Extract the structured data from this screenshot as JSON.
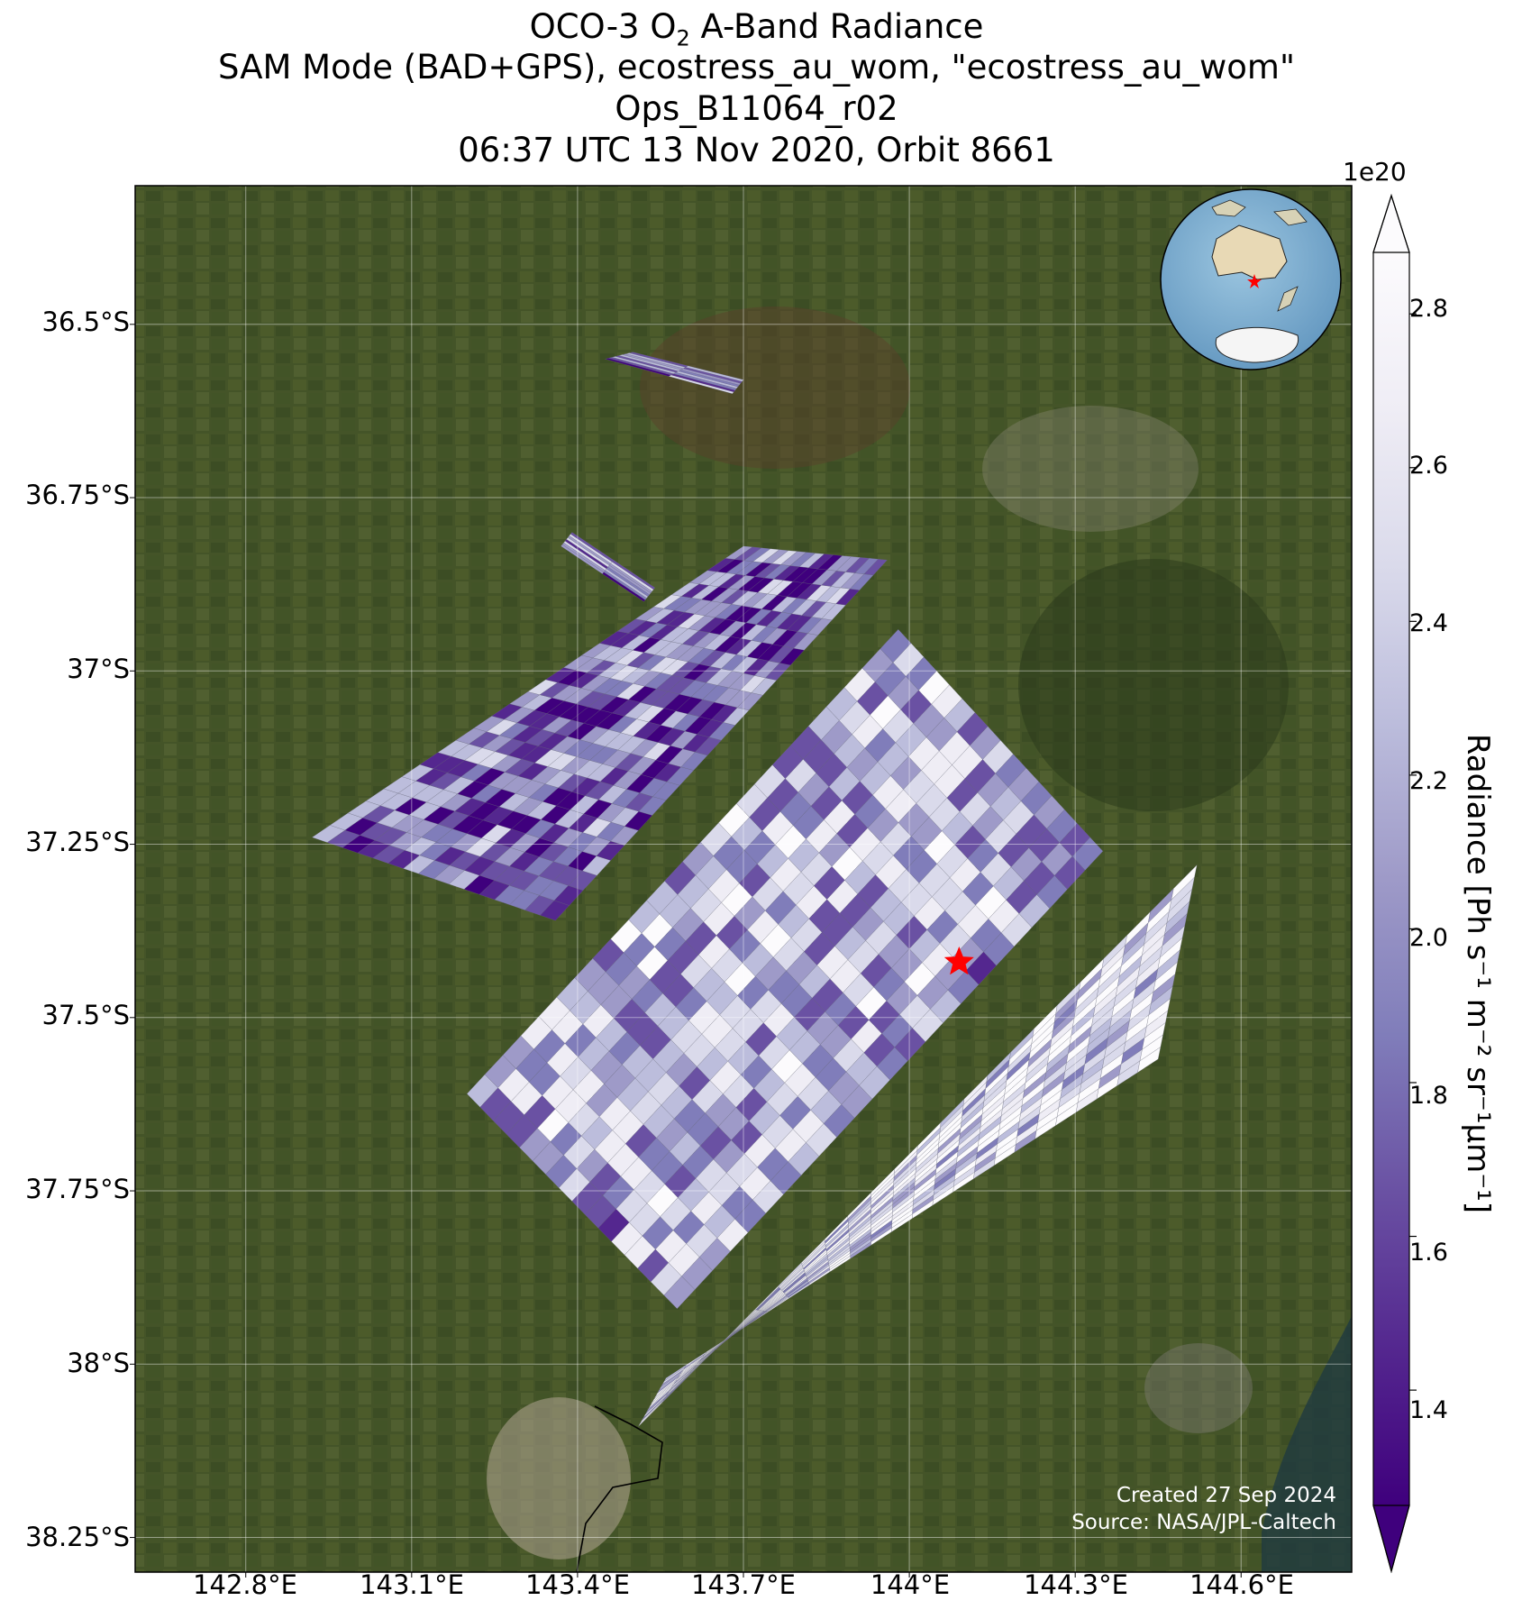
{
  "title": {
    "line1_prefix": "OCO-3 O",
    "line1_sub": "2",
    "line1_suffix": " A-Band Radiance",
    "line2": "SAM Mode (BAD+GPS), ecostress_au_wom, \"ecostress_au_wom\"",
    "line3": "Ops_B11064_r02",
    "line4": "06:37 UTC 13 Nov 2020, Orbit 8661"
  },
  "colorbar": {
    "label": "Radiance [Ph s⁻¹ m⁻² sr⁻¹μm⁻¹]",
    "exponent": "1e20",
    "ticks": [
      "2.8",
      "2.6",
      "2.4",
      "2.2",
      "2.0",
      "1.8",
      "1.6",
      "1.4"
    ],
    "colors": [
      "#3f007d",
      "#54278f",
      "#6a51a3",
      "#807dba",
      "#9e9ac8",
      "#bcbddc",
      "#dadaeb",
      "#efedf5",
      "#fcfbfd"
    ]
  },
  "credits": {
    "created": "Created 27 Sep 2024",
    "source": "Source: NASA/JPL-Caltech"
  },
  "chart_data": {
    "type": "heatmap",
    "title": "OCO-3 O2 A-Band Radiance",
    "xlabel": "",
    "ylabel": "",
    "x_ticks": [
      "142.8°E",
      "143.1°E",
      "143.4°E",
      "143.7°E",
      "144°E",
      "144.3°E",
      "144.6°E"
    ],
    "y_ticks": [
      "36.5°S",
      "36.75°S",
      "37°S",
      "37.25°S",
      "37.5°S",
      "37.75°S",
      "38°S",
      "38.25°S"
    ],
    "xlim": [
      142.6,
      144.8
    ],
    "ylim": [
      -38.3,
      -36.3
    ],
    "colorbar_range": [
      1.25,
      2.88
    ],
    "colorbar_unit_scale": "1e20",
    "grid": true,
    "target_marker": {
      "lon": 144.09,
      "lat": -37.42,
      "symbol": "red-star"
    },
    "swaths": [
      {
        "name": "swath-1",
        "corners": [
          [
            143.45,
            -36.55
          ],
          [
            143.5,
            -36.54
          ],
          [
            143.7,
            -36.58
          ],
          [
            143.68,
            -36.6
          ]
        ],
        "mean_radiance": 1.9
      },
      {
        "name": "swath-2",
        "corners": [
          [
            143.37,
            -36.82
          ],
          [
            143.39,
            -36.8
          ],
          [
            143.54,
            -36.88
          ],
          [
            143.52,
            -36.9
          ]
        ],
        "mean_radiance": 1.9
      },
      {
        "name": "swath-3",
        "corners": [
          [
            142.92,
            -37.24
          ],
          [
            143.7,
            -36.82
          ],
          [
            143.96,
            -36.84
          ],
          [
            143.36,
            -37.36
          ]
        ],
        "mean_radiance": 1.8
      },
      {
        "name": "swath-4",
        "corners": [
          [
            143.2,
            -37.61
          ],
          [
            143.98,
            -36.94
          ],
          [
            144.35,
            -37.26
          ],
          [
            143.58,
            -37.92
          ]
        ],
        "mean_radiance": 2.2
      },
      {
        "name": "swath-5",
        "corners": [
          [
            143.51,
            -38.09
          ],
          [
            144.52,
            -37.28
          ],
          [
            144.45,
            -37.56
          ],
          [
            143.56,
            -38.02
          ]
        ],
        "mean_radiance": 2.55
      }
    ]
  }
}
